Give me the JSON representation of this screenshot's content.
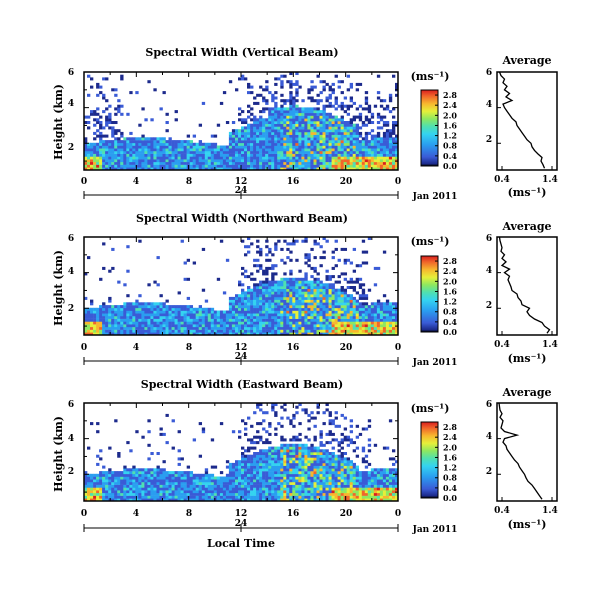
{
  "chart_data": {
    "type": "heatmap",
    "xlabel": "Local Time",
    "date_label": "Jan 2011",
    "x_ticks": [
      "0",
      "4",
      "8",
      "12",
      "16",
      "20",
      "0"
    ],
    "day_marker": "24",
    "xlim": [
      0,
      24
    ],
    "ylabel": "Height (km)",
    "y_ticks": [
      "2",
      "4",
      "6"
    ],
    "ylim": [
      0.5,
      6
    ],
    "colorbar": {
      "unit": "(ms⁻¹)",
      "ticks": [
        "0.0",
        "0.4",
        "0.8",
        "1.2",
        "1.6",
        "2.0",
        "2.4",
        "2.8"
      ],
      "range": [
        0,
        3.0
      ],
      "colors": [
        "#000000",
        "#1c2a8c",
        "#3a5bd6",
        "#2a9ef0",
        "#34d3f0",
        "#4fe0b0",
        "#8ee860",
        "#e6ef3a",
        "#f7b72e",
        "#f0662a",
        "#d81e1e"
      ]
    },
    "panels": [
      {
        "title": "Spectral Width (Vertical Beam)",
        "average": {
          "title": "Average",
          "xlabel": "(ms⁻¹)",
          "x_ticks": [
            "0.4",
            "1.4"
          ],
          "xlim": [
            0.3,
            1.5
          ],
          "y_ticks": [
            "2",
            "4",
            "6"
          ],
          "profile": [
            [
              1.25,
              0.6
            ],
            [
              1.22,
              0.8
            ],
            [
              1.18,
              1.0
            ],
            [
              1.2,
              1.2
            ],
            [
              1.12,
              1.4
            ],
            [
              1.05,
              1.6
            ],
            [
              1.0,
              1.8
            ],
            [
              0.98,
              2.0
            ],
            [
              0.9,
              2.2
            ],
            [
              0.85,
              2.4
            ],
            [
              0.8,
              2.6
            ],
            [
              0.75,
              2.8
            ],
            [
              0.7,
              3.0
            ],
            [
              0.68,
              3.2
            ],
            [
              0.6,
              3.4
            ],
            [
              0.55,
              3.6
            ],
            [
              0.5,
              3.8
            ],
            [
              0.45,
              4.0
            ],
            [
              0.42,
              4.2
            ],
            [
              0.6,
              4.4
            ],
            [
              0.48,
              4.6
            ],
            [
              0.55,
              4.8
            ],
            [
              0.45,
              5.0
            ],
            [
              0.5,
              5.2
            ],
            [
              0.42,
              5.4
            ],
            [
              0.45,
              5.6
            ],
            [
              0.38,
              5.8
            ],
            [
              0.35,
              6.0
            ]
          ]
        }
      },
      {
        "title": "Spectral Width (Northward Beam)",
        "average": {
          "title": "Average",
          "xlabel": "(ms⁻¹)",
          "x_ticks": [
            "0.4",
            "1.4"
          ],
          "xlim": [
            0.3,
            1.5
          ],
          "y_ticks": [
            "2",
            "4",
            "6"
          ],
          "profile": [
            [
              1.3,
              0.6
            ],
            [
              1.35,
              0.8
            ],
            [
              1.25,
              1.0
            ],
            [
              1.2,
              1.2
            ],
            [
              1.05,
              1.4
            ],
            [
              0.95,
              1.6
            ],
            [
              0.9,
              1.8
            ],
            [
              0.95,
              2.0
            ],
            [
              0.8,
              2.2
            ],
            [
              0.78,
              2.4
            ],
            [
              0.72,
              2.6
            ],
            [
              0.7,
              2.8
            ],
            [
              0.6,
              3.0
            ],
            [
              0.58,
              3.2
            ],
            [
              0.55,
              3.4
            ],
            [
              0.52,
              3.6
            ],
            [
              0.55,
              3.8
            ],
            [
              0.45,
              4.0
            ],
            [
              0.55,
              4.2
            ],
            [
              0.4,
              4.4
            ],
            [
              0.48,
              4.6
            ],
            [
              0.4,
              4.8
            ],
            [
              0.45,
              5.0
            ],
            [
              0.38,
              5.2
            ],
            [
              0.4,
              5.4
            ],
            [
              0.38,
              5.6
            ],
            [
              0.36,
              5.8
            ],
            [
              0.35,
              6.0
            ]
          ]
        }
      },
      {
        "title": "Spectral Width (Eastward Beam)",
        "average": {
          "title": "Average",
          "xlabel": "(ms⁻¹)",
          "x_ticks": [
            "0.4",
            "1.4"
          ],
          "xlim": [
            0.3,
            1.5
          ],
          "y_ticks": [
            "2",
            "4",
            "6"
          ],
          "profile": [
            [
              1.2,
              0.6
            ],
            [
              1.15,
              0.8
            ],
            [
              1.1,
              1.0
            ],
            [
              1.05,
              1.2
            ],
            [
              1.0,
              1.4
            ],
            [
              0.92,
              1.6
            ],
            [
              0.88,
              1.8
            ],
            [
              0.85,
              2.0
            ],
            [
              0.8,
              2.2
            ],
            [
              0.75,
              2.4
            ],
            [
              0.72,
              2.6
            ],
            [
              0.65,
              2.8
            ],
            [
              0.6,
              3.0
            ],
            [
              0.55,
              3.2
            ],
            [
              0.5,
              3.4
            ],
            [
              0.48,
              3.6
            ],
            [
              0.42,
              3.8
            ],
            [
              0.45,
              4.0
            ],
            [
              0.7,
              4.2
            ],
            [
              0.45,
              4.4
            ],
            [
              0.38,
              4.6
            ],
            [
              0.4,
              4.8
            ],
            [
              0.42,
              5.0
            ],
            [
              0.36,
              5.2
            ],
            [
              0.4,
              5.4
            ],
            [
              0.36,
              5.6
            ],
            [
              0.35,
              5.8
            ],
            [
              0.34,
              6.0
            ]
          ]
        }
      }
    ]
  }
}
